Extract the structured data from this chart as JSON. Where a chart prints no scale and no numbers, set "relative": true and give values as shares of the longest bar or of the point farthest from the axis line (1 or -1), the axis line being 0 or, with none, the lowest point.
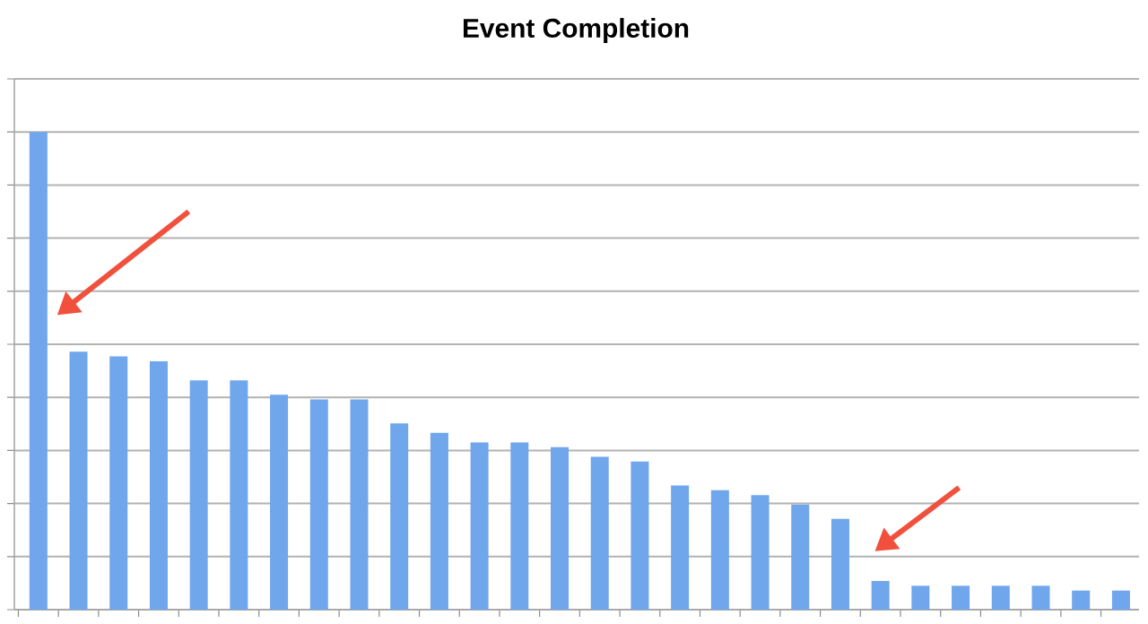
{
  "chart_data": {
    "type": "bar",
    "title": "Event Completion",
    "categories": [
      null,
      null,
      null,
      null,
      null,
      null,
      null,
      null,
      null,
      null,
      null,
      null,
      null,
      null,
      null,
      null,
      null,
      null,
      null,
      null,
      null,
      null,
      null,
      null,
      null,
      null,
      null,
      null
    ],
    "values": [
      1,
      0.54,
      0.53,
      0.52,
      0.48,
      0.48,
      0.45,
      0.44,
      0.44,
      0.39,
      0.37,
      0.35,
      0.35,
      0.34,
      0.32,
      0.31,
      0.26,
      0.25,
      0.24,
      0.22,
      0.19,
      0.06,
      0.05,
      0.05,
      0.05,
      0.05,
      0.04,
      0.04
    ],
    "color": "#6fa6ec",
    "relative": true,
    "grid": "y",
    "tick_labels": false
  }
}
